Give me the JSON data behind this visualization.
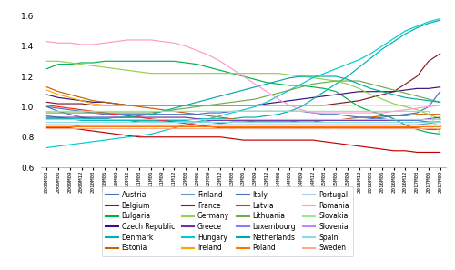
{
  "ylim": [
    0.6,
    1.65
  ],
  "yticks": [
    0.6,
    0.8,
    1.0,
    1.2,
    1.4,
    1.6
  ],
  "x_labels": [
    "2009M03",
    "2009M06",
    "2009M09",
    "2009M12",
    "2010M03",
    "2010M06",
    "2010M09",
    "2010M12",
    "2011M03",
    "2011M06",
    "2011M09",
    "2011M12",
    "2012M03",
    "2012M06",
    "2012M09",
    "2012M12",
    "2013M03",
    "2013M06",
    "2013M09",
    "2013M12",
    "2014M03",
    "2014M06",
    "2014M09",
    "2014M12",
    "2015M03",
    "2015M06",
    "2015M09",
    "2015M12",
    "2016M03",
    "2016M06",
    "2016M09",
    "2016M12",
    "2017M03",
    "2017M06",
    "2017M09"
  ],
  "countries": {
    "Austria": {
      "color": "#4472C4",
      "data": [
        1.0,
        0.97,
        0.95,
        0.93,
        0.92,
        0.92,
        0.91,
        0.91,
        0.9,
        0.9,
        0.9,
        0.9,
        0.9,
        0.9,
        0.9,
        0.89,
        0.9,
        0.9,
        0.9,
        0.9,
        0.9,
        0.9,
        0.91,
        0.91,
        0.91,
        0.91,
        0.91,
        0.91,
        0.92,
        0.93,
        0.94,
        0.95,
        0.96,
        1.0,
        1.1
      ]
    },
    "Belgium": {
      "color": "#7B2020",
      "data": [
        1.03,
        1.02,
        1.02,
        1.02,
        1.01,
        1.01,
        1.01,
        1.01,
        1.01,
        1.01,
        1.01,
        1.01,
        1.01,
        1.01,
        1.01,
        1.01,
        1.01,
        1.01,
        1.01,
        1.01,
        1.01,
        1.01,
        1.01,
        1.01,
        1.01,
        1.02,
        1.03,
        1.04,
        1.06,
        1.08,
        1.1,
        1.15,
        1.2,
        1.3,
        1.35
      ]
    },
    "Bulgaria": {
      "color": "#00B050",
      "data": [
        1.25,
        1.28,
        1.28,
        1.29,
        1.29,
        1.3,
        1.3,
        1.3,
        1.3,
        1.3,
        1.3,
        1.3,
        1.29,
        1.28,
        1.26,
        1.24,
        1.22,
        1.2,
        1.18,
        1.16,
        1.15,
        1.14,
        1.14,
        1.13,
        1.12,
        1.1,
        1.05,
        1.0,
        0.97,
        0.95,
        0.92,
        0.88,
        0.85,
        0.83,
        0.82
      ]
    },
    "Czech Republic": {
      "color": "#3D1080",
      "data": [
        1.08,
        1.06,
        1.05,
        1.04,
        1.03,
        1.03,
        1.02,
        1.01,
        1.01,
        1.01,
        1.01,
        1.01,
        1.01,
        1.01,
        1.01,
        1.01,
        1.01,
        1.01,
        1.01,
        1.02,
        1.03,
        1.04,
        1.05,
        1.06,
        1.07,
        1.08,
        1.09,
        1.1,
        1.1,
        1.1,
        1.1,
        1.11,
        1.12,
        1.12,
        1.13
      ]
    },
    "Denmark": {
      "color": "#00B0B0",
      "data": [
        0.94,
        0.93,
        0.92,
        0.91,
        0.91,
        0.91,
        0.91,
        0.91,
        0.91,
        0.91,
        0.91,
        0.91,
        0.91,
        0.92,
        0.92,
        0.92,
        0.92,
        0.93,
        0.93,
        0.94,
        0.95,
        0.97,
        1.0,
        1.05,
        1.1,
        1.15,
        1.2,
        1.26,
        1.32,
        1.38,
        1.43,
        1.48,
        1.52,
        1.55,
        1.57
      ]
    },
    "Estonia": {
      "color": "#C86000",
      "data": [
        1.13,
        1.1,
        1.08,
        1.06,
        1.04,
        1.03,
        1.02,
        1.01,
        1.0,
        0.99,
        0.98,
        0.97,
        0.96,
        0.95,
        0.94,
        0.93,
        0.92,
        0.91,
        0.9,
        0.9,
        0.9,
        0.9,
        0.9,
        0.9,
        0.91,
        0.91,
        0.92,
        0.93,
        0.93,
        0.94,
        0.94,
        0.94,
        0.95,
        0.95,
        0.95
      ]
    },
    "Finland": {
      "color": "#6699CC",
      "data": [
        0.88,
        0.88,
        0.88,
        0.87,
        0.87,
        0.87,
        0.87,
        0.87,
        0.87,
        0.87,
        0.87,
        0.87,
        0.87,
        0.87,
        0.88,
        0.88,
        0.88,
        0.88,
        0.88,
        0.88,
        0.88,
        0.88,
        0.88,
        0.88,
        0.88,
        0.88,
        0.88,
        0.88,
        0.88,
        0.88,
        0.88,
        0.88,
        0.88,
        0.89,
        0.9
      ]
    },
    "France": {
      "color": "#C00000",
      "data": [
        0.86,
        0.86,
        0.86,
        0.85,
        0.84,
        0.83,
        0.82,
        0.81,
        0.8,
        0.8,
        0.8,
        0.8,
        0.8,
        0.8,
        0.8,
        0.8,
        0.79,
        0.78,
        0.78,
        0.78,
        0.78,
        0.78,
        0.78,
        0.78,
        0.77,
        0.76,
        0.75,
        0.74,
        0.73,
        0.72,
        0.71,
        0.71,
        0.7,
        0.7,
        0.7
      ]
    },
    "Germany": {
      "color": "#92D050",
      "data": [
        1.3,
        1.3,
        1.29,
        1.28,
        1.27,
        1.26,
        1.25,
        1.24,
        1.23,
        1.22,
        1.22,
        1.22,
        1.22,
        1.22,
        1.22,
        1.22,
        1.22,
        1.22,
        1.22,
        1.22,
        1.22,
        1.21,
        1.2,
        1.19,
        1.18,
        1.17,
        1.15,
        1.12,
        1.08,
        1.05,
        1.02,
        1.0,
        0.98,
        0.95,
        0.92
      ]
    },
    "Greece": {
      "color": "#7030A0",
      "data": [
        0.93,
        0.93,
        0.93,
        0.93,
        0.93,
        0.93,
        0.93,
        0.93,
        0.93,
        0.93,
        0.93,
        0.93,
        0.93,
        0.92,
        0.91,
        0.91,
        0.91,
        0.91,
        0.91,
        0.91,
        0.91,
        0.91,
        0.91,
        0.91,
        0.91,
        0.91,
        0.91,
        0.91,
        0.91,
        0.91,
        0.91,
        0.91,
        0.91,
        0.92,
        0.93
      ]
    },
    "Hungary": {
      "color": "#00CCCC",
      "data": [
        0.73,
        0.74,
        0.75,
        0.76,
        0.77,
        0.78,
        0.79,
        0.8,
        0.81,
        0.82,
        0.84,
        0.86,
        0.88,
        0.9,
        0.92,
        0.94,
        0.96,
        0.98,
        1.0,
        1.03,
        1.07,
        1.11,
        1.15,
        1.19,
        1.22,
        1.25,
        1.28,
        1.31,
        1.35,
        1.4,
        1.45,
        1.5,
        1.53,
        1.56,
        1.58
      ]
    },
    "Ireland": {
      "color": "#FFA500",
      "data": [
        1.11,
        1.08,
        1.06,
        1.04,
        1.02,
        1.01,
        1.01,
        1.01,
        1.01,
        1.01,
        1.01,
        1.01,
        1.01,
        1.01,
        1.01,
        1.01,
        1.01,
        1.01,
        1.01,
        1.01,
        1.01,
        1.01,
        1.01,
        1.01,
        1.01,
        1.01,
        1.01,
        1.01,
        1.01,
        1.01,
        1.01,
        1.01,
        1.01,
        1.01,
        1.01
      ]
    },
    "Italy": {
      "color": "#4472C4",
      "data": [
        1.0,
        0.99,
        0.98,
        0.97,
        0.96,
        0.95,
        0.95,
        0.95,
        0.95,
        0.95,
        0.95,
        0.95,
        0.95,
        0.95,
        0.96,
        0.96,
        0.97,
        0.97,
        0.97,
        0.97,
        0.97,
        0.97,
        0.97,
        0.96,
        0.95,
        0.95,
        0.94,
        0.93,
        0.93,
        0.92,
        0.91,
        0.91,
        0.91,
        0.9,
        0.9
      ]
    },
    "Latvia": {
      "color": "#FF2020",
      "data": [
        1.01,
        1.0,
        0.99,
        0.98,
        0.97,
        0.96,
        0.95,
        0.94,
        0.93,
        0.92,
        0.91,
        0.9,
        0.89,
        0.88,
        0.87,
        0.86,
        0.86,
        0.86,
        0.86,
        0.86,
        0.86,
        0.86,
        0.86,
        0.86,
        0.86,
        0.86,
        0.86,
        0.86,
        0.86,
        0.86,
        0.86,
        0.86,
        0.86,
        0.85,
        0.85
      ]
    },
    "Lithuania": {
      "color": "#70AD47",
      "data": [
        0.96,
        0.96,
        0.96,
        0.96,
        0.96,
        0.96,
        0.96,
        0.96,
        0.96,
        0.96,
        0.97,
        0.98,
        0.99,
        1.0,
        1.01,
        1.02,
        1.03,
        1.04,
        1.05,
        1.07,
        1.09,
        1.11,
        1.13,
        1.15,
        1.16,
        1.17,
        1.17,
        1.17,
        1.15,
        1.13,
        1.11,
        1.09,
        1.07,
        1.05,
        1.03
      ]
    },
    "Luxembourg": {
      "color": "#8080FF",
      "data": [
        0.88,
        0.88,
        0.88,
        0.88,
        0.88,
        0.88,
        0.88,
        0.88,
        0.88,
        0.88,
        0.88,
        0.88,
        0.88,
        0.88,
        0.88,
        0.88,
        0.88,
        0.88,
        0.88,
        0.88,
        0.88,
        0.88,
        0.88,
        0.88,
        0.88,
        0.88,
        0.88,
        0.88,
        0.88,
        0.88,
        0.88,
        0.88,
        0.88,
        0.88,
        0.88
      ]
    },
    "Netherlands": {
      "color": "#00AAAA",
      "data": [
        0.92,
        0.92,
        0.92,
        0.92,
        0.92,
        0.92,
        0.93,
        0.93,
        0.94,
        0.95,
        0.97,
        0.99,
        1.01,
        1.03,
        1.05,
        1.07,
        1.09,
        1.11,
        1.13,
        1.15,
        1.17,
        1.19,
        1.2,
        1.2,
        1.2,
        1.2,
        1.18,
        1.15,
        1.12,
        1.1,
        1.08,
        1.06,
        1.05,
        1.04,
        1.03
      ]
    },
    "Poland": {
      "color": "#FF7700",
      "data": [
        0.87,
        0.87,
        0.87,
        0.87,
        0.87,
        0.87,
        0.87,
        0.87,
        0.87,
        0.87,
        0.87,
        0.87,
        0.87,
        0.87,
        0.87,
        0.87,
        0.87,
        0.87,
        0.87,
        0.87,
        0.87,
        0.87,
        0.87,
        0.87,
        0.87,
        0.87,
        0.87,
        0.87,
        0.87,
        0.87,
        0.87,
        0.87,
        0.87,
        0.87,
        0.87
      ]
    },
    "Portugal": {
      "color": "#AACCEE",
      "data": [
        0.92,
        0.92,
        0.92,
        0.92,
        0.92,
        0.92,
        0.92,
        0.92,
        0.92,
        0.92,
        0.92,
        0.92,
        0.92,
        0.92,
        0.92,
        0.92,
        0.92,
        0.92,
        0.92,
        0.92,
        0.92,
        0.92,
        0.92,
        0.92,
        0.92,
        0.92,
        0.92,
        0.92,
        0.92,
        0.92,
        0.92,
        0.92,
        0.92,
        0.92,
        0.92
      ]
    },
    "Romania": {
      "color": "#FF99CC",
      "data": [
        1.43,
        1.42,
        1.42,
        1.41,
        1.41,
        1.42,
        1.43,
        1.44,
        1.44,
        1.44,
        1.43,
        1.42,
        1.4,
        1.37,
        1.34,
        1.3,
        1.25,
        1.2,
        1.15,
        1.1,
        1.05,
        1.01,
        0.98,
        0.96,
        0.96,
        0.96,
        0.96,
        0.96,
        0.96,
        0.96,
        0.97,
        0.98,
        0.99,
        1.0,
        1.01
      ]
    },
    "Slovakia": {
      "color": "#90EE90",
      "data": [
        0.97,
        0.97,
        0.97,
        0.97,
        0.97,
        0.97,
        0.97,
        0.97,
        0.97,
        0.97,
        0.97,
        0.97,
        0.97,
        0.97,
        0.97,
        0.97,
        0.97,
        0.97,
        0.97,
        0.97,
        0.97,
        0.97,
        0.97,
        0.97,
        0.97,
        0.97,
        0.97,
        0.97,
        0.97,
        0.97,
        0.97,
        0.97,
        0.97,
        0.97,
        0.82
      ]
    },
    "Slovenia": {
      "color": "#BB88FF",
      "data": [
        0.88,
        0.88,
        0.88,
        0.88,
        0.88,
        0.88,
        0.88,
        0.88,
        0.88,
        0.88,
        0.88,
        0.88,
        0.88,
        0.88,
        0.88,
        0.88,
        0.88,
        0.88,
        0.88,
        0.88,
        0.88,
        0.88,
        0.88,
        0.88,
        0.88,
        0.88,
        0.88,
        0.88,
        0.88,
        0.88,
        0.88,
        0.88,
        0.88,
        0.88,
        0.88
      ]
    },
    "Spain": {
      "color": "#88DDDD",
      "data": [
        0.9,
        0.9,
        0.9,
        0.9,
        0.9,
        0.9,
        0.9,
        0.9,
        0.9,
        0.9,
        0.9,
        0.9,
        0.9,
        0.9,
        0.9,
        0.9,
        0.9,
        0.9,
        0.9,
        0.9,
        0.9,
        0.9,
        0.9,
        0.9,
        0.9,
        0.9,
        0.9,
        0.9,
        0.9,
        0.9,
        0.9,
        0.9,
        0.9,
        0.9,
        0.9
      ]
    },
    "Sweden": {
      "color": "#FFAA88",
      "data": [
        0.86,
        0.86,
        0.86,
        0.86,
        0.86,
        0.86,
        0.86,
        0.86,
        0.86,
        0.86,
        0.86,
        0.86,
        0.86,
        0.86,
        0.86,
        0.86,
        0.86,
        0.86,
        0.86,
        0.86,
        0.86,
        0.86,
        0.86,
        0.86,
        0.86,
        0.86,
        0.86,
        0.86,
        0.86,
        0.86,
        0.86,
        0.86,
        0.86,
        0.86,
        0.86
      ]
    }
  },
  "legend_order": [
    [
      "Austria",
      "Belgium",
      "Bulgaria",
      "Czech Republic"
    ],
    [
      "Denmark",
      "Estonia",
      "Finland",
      "France"
    ],
    [
      "Germany",
      "Greece",
      "Hungary",
      "Ireland"
    ],
    [
      "Italy",
      "Latvia",
      "Lithuania",
      "Luxembourg"
    ],
    [
      "Netherlands",
      "Poland",
      "Portugal",
      "Romania"
    ],
    [
      "Slovakia",
      "Slovenia",
      "Spain",
      "Sweden"
    ]
  ]
}
